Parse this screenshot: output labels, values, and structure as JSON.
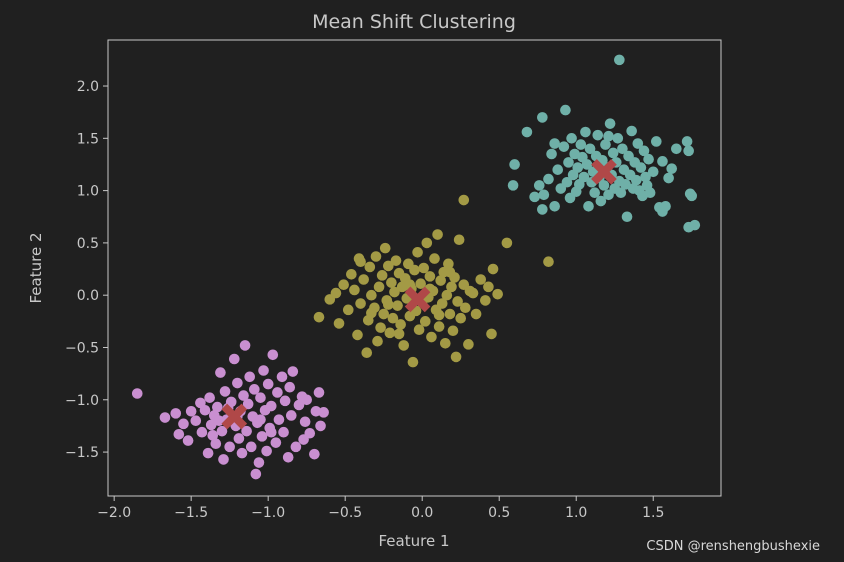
{
  "chart_data": {
    "type": "scatter",
    "title": "Mean Shift Clustering",
    "xlabel": "Feature 1",
    "ylabel": "Feature 2",
    "xlim": [
      -2.04,
      1.94
    ],
    "ylim": [
      -1.92,
      2.44
    ],
    "xticks": [
      -2.0,
      -1.5,
      -1.0,
      -0.5,
      0.0,
      0.5,
      1.0,
      1.5
    ],
    "xtick_labels": [
      "−2.0",
      "−1.5",
      "−1.0",
      "−0.5",
      "0.0",
      "0.5",
      "1.0",
      "1.5"
    ],
    "yticks": [
      -1.5,
      -1.0,
      -0.5,
      0.0,
      0.5,
      1.0,
      1.5,
      2.0
    ],
    "ytick_labels": [
      "−1.5",
      "−1.0",
      "−0.5",
      "0.0",
      "0.5",
      "1.0",
      "1.5",
      "2.0"
    ],
    "grid": false,
    "colors": {
      "background": "#202020",
      "axes": "#c8c8c8",
      "centers": "#b04848"
    },
    "series": [
      {
        "color": "#c98fd0",
        "points": [
          [
            -1.85,
            -0.94
          ],
          [
            -1.67,
            -1.17
          ],
          [
            -1.6,
            -1.13
          ],
          [
            -1.58,
            -1.33
          ],
          [
            -1.55,
            -1.23
          ],
          [
            -1.52,
            -1.39
          ],
          [
            -1.5,
            -1.11
          ],
          [
            -1.47,
            -1.2
          ],
          [
            -1.44,
            -1.03
          ],
          [
            -1.43,
            -1.31
          ],
          [
            -1.41,
            -1.1
          ],
          [
            -1.39,
            -1.51
          ],
          [
            -1.38,
            -0.98
          ],
          [
            -1.37,
            -1.24
          ],
          [
            -1.35,
            -1.15
          ],
          [
            -1.34,
            -1.42
          ],
          [
            -1.33,
            -1.07
          ],
          [
            -1.31,
            -0.74
          ],
          [
            -1.3,
            -1.3
          ],
          [
            -1.29,
            -1.57
          ],
          [
            -1.28,
            -0.92
          ],
          [
            -1.27,
            -1.19
          ],
          [
            -1.25,
            -1.45
          ],
          [
            -1.24,
            -1.02
          ],
          [
            -1.22,
            -0.61
          ],
          [
            -1.21,
            -1.25
          ],
          [
            -1.2,
            -0.84
          ],
          [
            -1.19,
            -1.37
          ],
          [
            -1.18,
            -1.11
          ],
          [
            -1.17,
            -1.51
          ],
          [
            -1.16,
            -0.96
          ],
          [
            -1.15,
            -0.48
          ],
          [
            -1.14,
            -1.3
          ],
          [
            -1.13,
            -1.04
          ],
          [
            -1.12,
            -0.78
          ],
          [
            -1.11,
            -1.45
          ],
          [
            -1.1,
            -1.16
          ],
          [
            -1.09,
            -0.9
          ],
          [
            -1.08,
            -1.71
          ],
          [
            -1.07,
            -1.22
          ],
          [
            -1.06,
            -1.6
          ],
          [
            -1.05,
            -0.98
          ],
          [
            -1.04,
            -1.35
          ],
          [
            -1.03,
            -0.72
          ],
          [
            -1.02,
            -1.1
          ],
          [
            -1.01,
            -1.49
          ],
          [
            -1.0,
            -0.85
          ],
          [
            -0.99,
            -1.27
          ],
          [
            -0.98,
            -1.06
          ],
          [
            -0.97,
            -0.57
          ],
          [
            -0.95,
            -1.41
          ],
          [
            -0.94,
            -0.93
          ],
          [
            -0.93,
            -1.19
          ],
          [
            -0.91,
            -0.78
          ],
          [
            -0.9,
            -1.31
          ],
          [
            -0.89,
            -1.01
          ],
          [
            -0.87,
            -1.55
          ],
          [
            -0.86,
            -0.88
          ],
          [
            -0.85,
            -1.15
          ],
          [
            -0.84,
            -0.73
          ],
          [
            -0.82,
            -1.45
          ],
          [
            -0.8,
            -1.05
          ],
          [
            -0.78,
            -0.97
          ],
          [
            -0.77,
            -1.38
          ],
          [
            -0.76,
            -1.21
          ],
          [
            -0.75,
            -1.0
          ],
          [
            -0.73,
            -1.32
          ],
          [
            -0.7,
            -1.52
          ],
          [
            -0.69,
            -1.11
          ],
          [
            -0.67,
            -0.93
          ],
          [
            -0.66,
            -1.25
          ],
          [
            -0.64,
            -1.12
          ],
          [
            -1.36,
            -1.34
          ],
          [
            -1.26,
            -1.08
          ],
          [
            -1.2,
            -1.16
          ],
          [
            -1.05,
            -1.19
          ],
          [
            -0.98,
            -1.31
          ],
          [
            -1.32,
            -1.2
          ]
        ]
      },
      {
        "color": "#a39a45",
        "points": [
          [
            -0.67,
            -0.21
          ],
          [
            -0.6,
            -0.04
          ],
          [
            -0.56,
            0.02
          ],
          [
            -0.54,
            -0.27
          ],
          [
            -0.51,
            0.1
          ],
          [
            -0.48,
            -0.14
          ],
          [
            -0.46,
            0.2
          ],
          [
            -0.44,
            0.05
          ],
          [
            -0.42,
            -0.38
          ],
          [
            -0.41,
            0.35
          ],
          [
            -0.4,
            -0.08
          ],
          [
            -0.38,
            0.15
          ],
          [
            -0.36,
            -0.55
          ],
          [
            -0.35,
            -0.24
          ],
          [
            -0.34,
            0.27
          ],
          [
            -0.33,
            0.0
          ],
          [
            -0.31,
            -0.12
          ],
          [
            -0.3,
            0.37
          ],
          [
            -0.29,
            -0.44
          ],
          [
            -0.28,
            0.08
          ],
          [
            -0.27,
            -0.31
          ],
          [
            -0.26,
            0.19
          ],
          [
            -0.25,
            -0.18
          ],
          [
            -0.24,
            0.45
          ],
          [
            -0.23,
            -0.05
          ],
          [
            -0.22,
            0.28
          ],
          [
            -0.21,
            -0.36
          ],
          [
            -0.2,
            0.12
          ],
          [
            -0.19,
            -0.22
          ],
          [
            -0.18,
            0.03
          ],
          [
            -0.17,
            0.33
          ],
          [
            -0.16,
            -0.1
          ],
          [
            -0.15,
            0.21
          ],
          [
            -0.14,
            -0.28
          ],
          [
            -0.13,
            0.08
          ],
          [
            -0.12,
            -0.48
          ],
          [
            -0.11,
            0.16
          ],
          [
            -0.1,
            -0.03
          ],
          [
            -0.09,
            0.3
          ],
          [
            -0.08,
            -0.2
          ],
          [
            -0.07,
            0.06
          ],
          [
            -0.06,
            -0.64
          ],
          [
            -0.05,
            0.24
          ],
          [
            -0.04,
            -0.15
          ],
          [
            -0.03,
            0.41
          ],
          [
            -0.02,
            -0.33
          ],
          [
            -0.01,
            0.11
          ],
          [
            0.0,
            -0.07
          ],
          [
            0.01,
            0.26
          ],
          [
            0.02,
            -0.25
          ],
          [
            0.03,
            0.5
          ],
          [
            0.04,
            -0.02
          ],
          [
            0.05,
            0.18
          ],
          [
            0.06,
            -0.4
          ],
          [
            0.07,
            0.04
          ],
          [
            0.08,
            0.35
          ],
          [
            0.09,
            -0.14
          ],
          [
            0.1,
            0.58
          ],
          [
            0.11,
            -0.3
          ],
          [
            0.12,
            0.14
          ],
          [
            0.13,
            -0.08
          ],
          [
            0.14,
            0.22
          ],
          [
            0.15,
            -0.46
          ],
          [
            0.16,
            0.0
          ],
          [
            0.17,
            0.3
          ],
          [
            0.18,
            -0.18
          ],
          [
            0.19,
            0.08
          ],
          [
            0.2,
            -0.34
          ],
          [
            0.21,
            0.17
          ],
          [
            0.22,
            -0.59
          ],
          [
            0.23,
            -0.06
          ],
          [
            0.24,
            0.53
          ],
          [
            0.25,
            -0.22
          ],
          [
            0.27,
            0.1
          ],
          [
            0.28,
            -0.12
          ],
          [
            0.3,
            -0.47
          ],
          [
            0.31,
            0.04
          ],
          [
            0.33,
            0.02
          ],
          [
            0.35,
            -0.18
          ],
          [
            0.38,
            0.15
          ],
          [
            0.41,
            -0.05
          ],
          [
            0.43,
            0.08
          ],
          [
            0.45,
            -0.37
          ],
          [
            0.46,
            0.25
          ],
          [
            0.49,
            0.01
          ],
          [
            0.55,
            0.5
          ],
          [
            0.82,
            0.32
          ],
          [
            0.27,
            0.91
          ],
          [
            -0.4,
            0.32
          ],
          [
            -0.33,
            -0.17
          ],
          [
            -0.22,
            -0.09
          ],
          [
            -0.08,
            0.1
          ],
          [
            0.05,
            0.06
          ],
          [
            0.11,
            -0.19
          ],
          [
            0.18,
            0.22
          ],
          [
            -0.15,
            -0.37
          ]
        ]
      },
      {
        "color": "#6fb0a8",
        "points": [
          [
            1.28,
            2.25
          ],
          [
            0.59,
            1.05
          ],
          [
            0.6,
            1.25
          ],
          [
            0.68,
            1.56
          ],
          [
            0.73,
            0.94
          ],
          [
            0.76,
            1.05
          ],
          [
            0.78,
            1.7
          ],
          [
            0.78,
            0.82
          ],
          [
            0.79,
            0.96
          ],
          [
            0.82,
            1.11
          ],
          [
            0.84,
            1.35
          ],
          [
            0.86,
            0.85
          ],
          [
            0.88,
            1.2
          ],
          [
            0.9,
            1.02
          ],
          [
            0.92,
            1.42
          ],
          [
            0.93,
            1.77
          ],
          [
            0.94,
            1.08
          ],
          [
            0.95,
            1.27
          ],
          [
            0.96,
            0.93
          ],
          [
            0.97,
            1.5
          ],
          [
            0.98,
            1.15
          ],
          [
            0.99,
            1.35
          ],
          [
            1.0,
            0.99
          ],
          [
            1.01,
            1.22
          ],
          [
            1.02,
            1.06
          ],
          [
            1.03,
            1.44
          ],
          [
            1.04,
            1.32
          ],
          [
            1.05,
            1.13
          ],
          [
            1.06,
            1.56
          ],
          [
            1.07,
            1.25
          ],
          [
            1.08,
            0.85
          ],
          [
            1.09,
            1.4
          ],
          [
            1.1,
            1.08
          ],
          [
            1.11,
            1.18
          ],
          [
            1.12,
            0.98
          ],
          [
            1.13,
            1.33
          ],
          [
            1.14,
            1.53
          ],
          [
            1.15,
            1.12
          ],
          [
            1.16,
            0.9
          ],
          [
            1.17,
            1.29
          ],
          [
            1.18,
            1.05
          ],
          [
            1.19,
            1.44
          ],
          [
            1.2,
            1.22
          ],
          [
            1.21,
            0.96
          ],
          [
            1.22,
            1.64
          ],
          [
            1.23,
            1.15
          ],
          [
            1.24,
            1.36
          ],
          [
            1.25,
            1.02
          ],
          [
            1.26,
            1.27
          ],
          [
            1.27,
            1.5
          ],
          [
            1.28,
            1.09
          ],
          [
            1.29,
            0.98
          ],
          [
            1.3,
            1.4
          ],
          [
            1.31,
            1.2
          ],
          [
            1.32,
            1.06
          ],
          [
            1.33,
            0.75
          ],
          [
            1.34,
            1.33
          ],
          [
            1.35,
            1.15
          ],
          [
            1.36,
            1.57
          ],
          [
            1.37,
            1.02
          ],
          [
            1.38,
            1.27
          ],
          [
            1.39,
            1.1
          ],
          [
            1.4,
            1.45
          ],
          [
            1.41,
            1.0
          ],
          [
            1.42,
            1.22
          ],
          [
            1.43,
            0.95
          ],
          [
            1.44,
            1.38
          ],
          [
            1.45,
            1.13
          ],
          [
            1.46,
            1.05
          ],
          [
            1.47,
            1.3
          ],
          [
            1.48,
            0.98
          ],
          [
            1.5,
            1.18
          ],
          [
            1.52,
            1.47
          ],
          [
            1.54,
            0.84
          ],
          [
            1.56,
            0.8
          ],
          [
            1.58,
            0.85
          ],
          [
            1.6,
            1.12
          ],
          [
            1.65,
            1.4
          ],
          [
            1.72,
            1.47
          ],
          [
            1.73,
            1.38
          ],
          [
            1.74,
            0.97
          ],
          [
            1.75,
            0.95
          ],
          [
            1.77,
            0.67
          ],
          [
            1.73,
            0.65
          ],
          [
            1.62,
            1.21
          ],
          [
            1.56,
            1.28
          ],
          [
            0.86,
            1.45
          ],
          [
            1.21,
            1.52
          ]
        ]
      }
    ],
    "centers": [
      [
        -1.22,
        -1.16
      ],
      [
        -0.03,
        -0.04
      ],
      [
        1.18,
        1.18
      ]
    ]
  },
  "watermark": "CSDN @renshengbushexie"
}
